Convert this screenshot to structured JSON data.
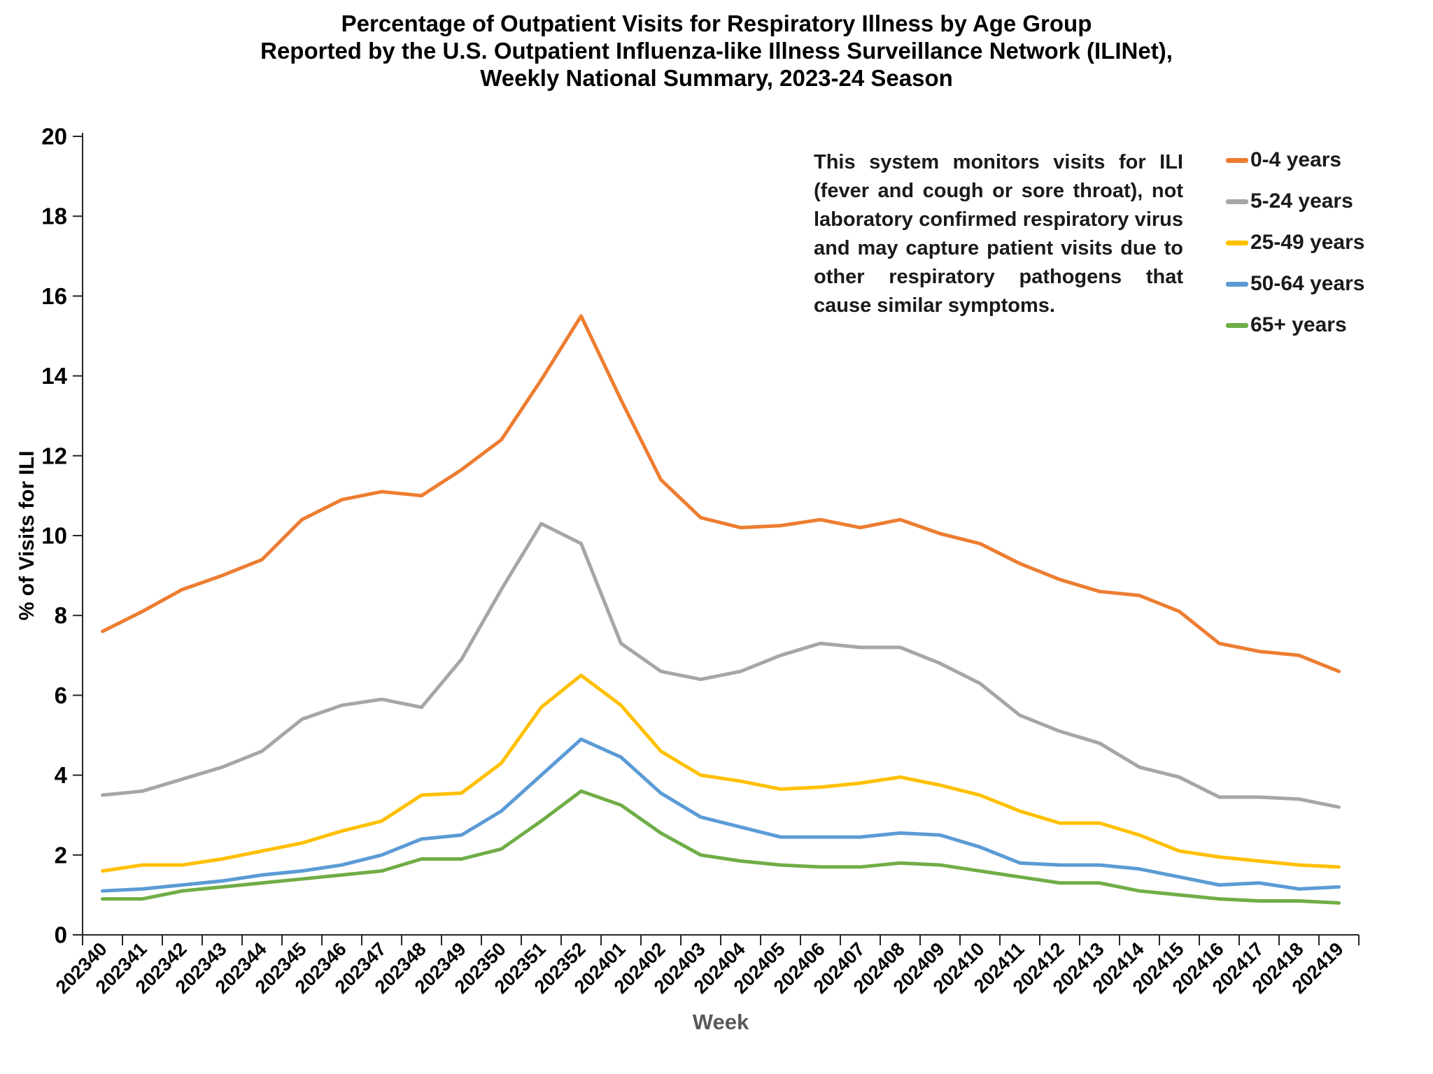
{
  "header": {
    "title_line1": "Percentage of Outpatient Visits for Respiratory Illness by Age Group",
    "title_line2": "Reported by the U.S. Outpatient Influenza-like Illness Surveillance Network (ILINet),",
    "title_line3": "Weekly National Summary, 2023-24 Season"
  },
  "annotation": "This system monitors visits for ILI (fever and cough or sore throat), not laboratory confirmed respiratory virus and may capture patient visits due to other respiratory pathogens that cause similar symptoms.",
  "chart_data": {
    "type": "line",
    "title": "Percentage of Outpatient Visits for Respiratory Illness by Age Group Reported by the U.S. Outpatient Influenza-like Illness Surveillance Network (ILINet), Weekly National Summary, 2023-24 Season",
    "xlabel": "Week",
    "ylabel": "% of Visits for ILI",
    "ylim": [
      0,
      20
    ],
    "ytick_step": 2,
    "grid": false,
    "legend_position": "right",
    "categories": [
      "202340",
      "202341",
      "202342",
      "202343",
      "202344",
      "202345",
      "202346",
      "202347",
      "202348",
      "202349",
      "202350",
      "202351",
      "202352",
      "202401",
      "202402",
      "202403",
      "202404",
      "202405",
      "202406",
      "202407",
      "202408",
      "202409",
      "202410",
      "202411",
      "202412",
      "202413",
      "202414",
      "202415",
      "202416",
      "202417",
      "202418",
      "202419"
    ],
    "series": [
      {
        "name": "0-4 years",
        "color": "#ED7D31",
        "values": [
          7.6,
          8.1,
          8.65,
          9.0,
          9.4,
          10.4,
          10.9,
          11.1,
          11.0,
          11.65,
          12.4,
          13.9,
          15.5,
          13.4,
          11.4,
          10.45,
          10.2,
          10.25,
          10.4,
          10.2,
          10.4,
          10.05,
          9.8,
          9.3,
          8.9,
          8.6,
          8.5,
          8.1,
          7.3,
          7.1,
          7.0,
          6.6
        ]
      },
      {
        "name": "5-24 years",
        "color": "#A6A6A6",
        "values": [
          3.5,
          3.6,
          3.9,
          4.2,
          4.6,
          5.4,
          5.75,
          5.9,
          5.7,
          6.9,
          8.65,
          10.3,
          9.8,
          7.3,
          6.6,
          6.4,
          6.6,
          7.0,
          7.3,
          7.2,
          7.2,
          6.8,
          6.3,
          5.5,
          5.1,
          4.8,
          4.2,
          3.95,
          3.45,
          3.45,
          3.4,
          3.2
        ]
      },
      {
        "name": "25-49 years",
        "color": "#FFC000",
        "values": [
          1.6,
          1.75,
          1.75,
          1.9,
          2.1,
          2.3,
          2.6,
          2.85,
          3.5,
          3.55,
          4.3,
          5.7,
          6.5,
          5.75,
          4.6,
          4.0,
          3.85,
          3.65,
          3.7,
          3.8,
          3.95,
          3.75,
          3.5,
          3.1,
          2.8,
          2.8,
          2.5,
          2.1,
          1.95,
          1.85,
          1.75,
          1.7
        ]
      },
      {
        "name": "50-64 years",
        "color": "#5B9BD5",
        "values": [
          1.1,
          1.15,
          1.25,
          1.35,
          1.5,
          1.6,
          1.75,
          2.0,
          2.4,
          2.5,
          3.1,
          4.0,
          4.9,
          4.45,
          3.55,
          2.95,
          2.7,
          2.45,
          2.45,
          2.45,
          2.55,
          2.5,
          2.2,
          1.8,
          1.75,
          1.75,
          1.65,
          1.45,
          1.25,
          1.3,
          1.15,
          1.2
        ]
      },
      {
        "name": "65+ years",
        "color": "#70AD47",
        "values": [
          0.9,
          0.9,
          1.1,
          1.2,
          1.3,
          1.4,
          1.5,
          1.6,
          1.9,
          1.9,
          2.15,
          2.85,
          3.6,
          3.25,
          2.55,
          2.0,
          1.85,
          1.75,
          1.7,
          1.7,
          1.8,
          1.75,
          1.6,
          1.45,
          1.3,
          1.3,
          1.1,
          1.0,
          0.9,
          0.85,
          0.85,
          0.8
        ]
      }
    ]
  },
  "colors": {
    "axis": "#262626",
    "tick_label": "#000000",
    "x_axis_title": "#595959"
  }
}
